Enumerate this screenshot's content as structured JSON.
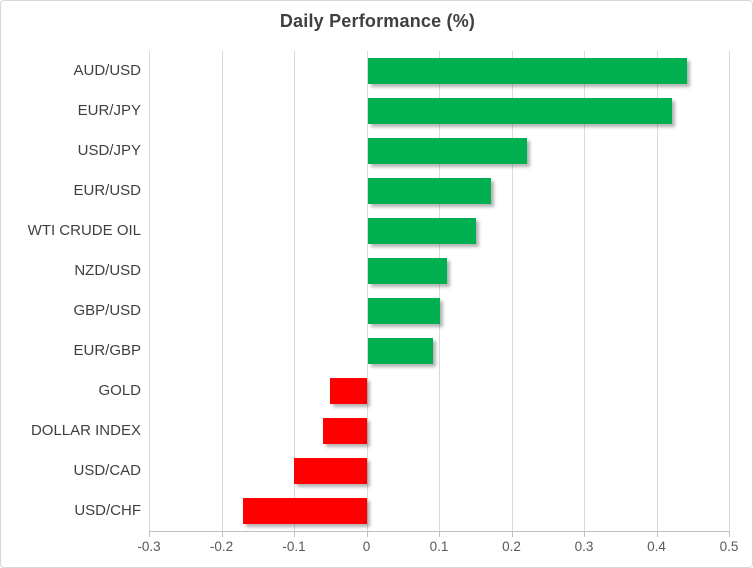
{
  "chart_data": {
    "type": "bar",
    "orientation": "horizontal",
    "title": "Daily Performance (%)",
    "categories": [
      "AUD/USD",
      "EUR/JPY",
      "USD/JPY",
      "EUR/USD",
      "WTI CRUDE OIL",
      "NZD/USD",
      "GBP/USD",
      "EUR/GBP",
      "GOLD",
      "DOLLAR INDEX",
      "USD/CAD",
      "USD/CHF"
    ],
    "values": [
      0.44,
      0.42,
      0.22,
      0.17,
      0.15,
      0.11,
      0.1,
      0.09,
      -0.05,
      -0.06,
      -0.1,
      -0.17
    ],
    "xlabel": "",
    "ylabel": "",
    "xlim": [
      -0.3,
      0.5
    ],
    "x_ticks": [
      -0.3,
      -0.2,
      -0.1,
      0,
      0.1,
      0.2,
      0.3,
      0.4,
      0.5
    ],
    "x_tick_labels": [
      "-0.3",
      "-0.2",
      "-0.1",
      "0",
      "0.1",
      "0.2",
      "0.3",
      "0.4",
      "0.5"
    ],
    "grid": true,
    "legend": false,
    "colors": {
      "positive": "#00B050",
      "negative": "#FF0000",
      "gridline": "#D9D9D9",
      "axis_line": "#BFBFBF",
      "title_text": "#3F3F3F",
      "tick_text": "#595959",
      "category_text": "#3F3F3F"
    }
  }
}
